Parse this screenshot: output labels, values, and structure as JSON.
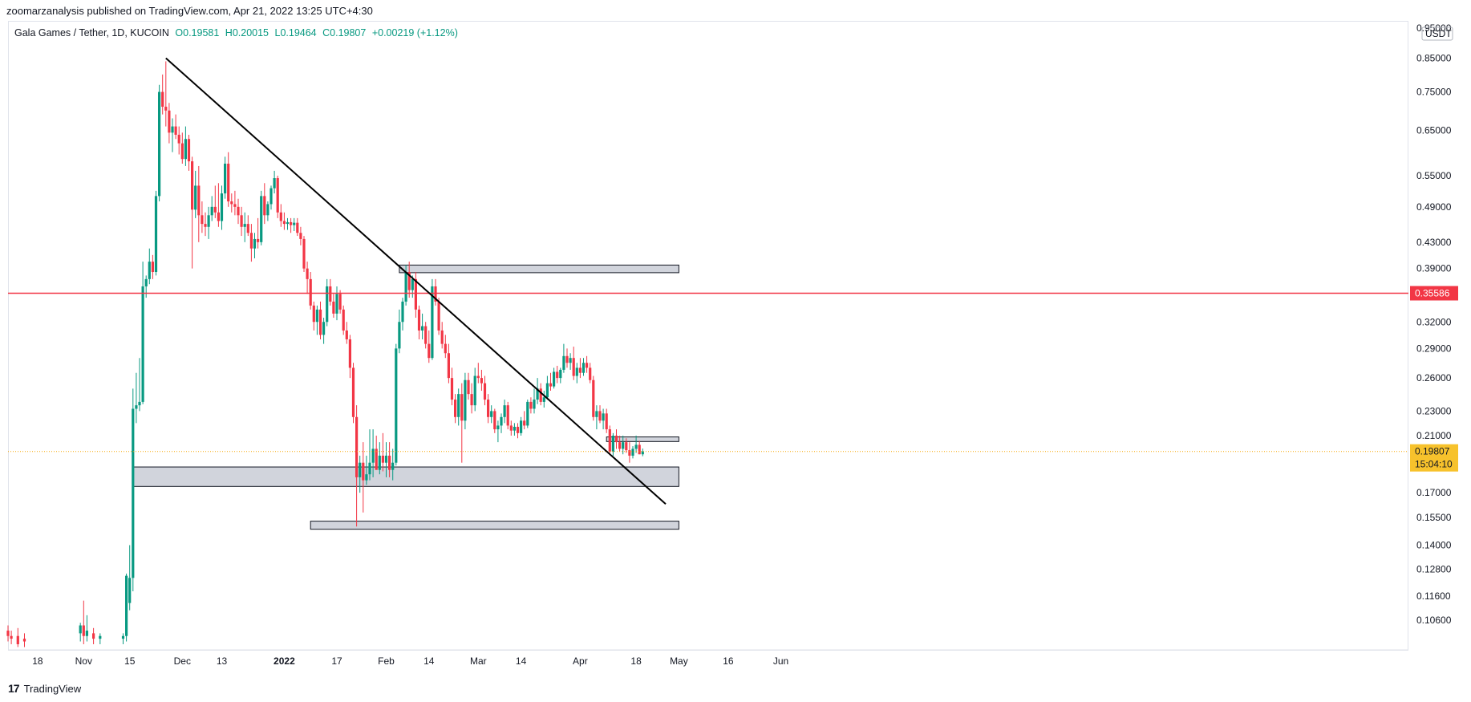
{
  "publisher_line": "zoomarzanalysis published on TradingView.com, Apr 21, 2022 13:25 UTC+4:30",
  "legend": {
    "symbol": "Gala Games / Tether, 1D, KUCOIN",
    "open": "O0.19581",
    "high": "H0.20015",
    "low": "L0.19464",
    "close": "C0.19807",
    "change": "+0.00219 (+1.12%)"
  },
  "footer": {
    "logo_glyph": "17",
    "brand": "TradingView"
  },
  "colors": {
    "up": "#089981",
    "down": "#f23645",
    "resistance_line": "#f23645",
    "zone_fill": "#d1d4dc",
    "current_price_badge": "#f7c22c",
    "trendline": "#000000"
  },
  "chart_data": {
    "type": "candlestick",
    "yscale": "log",
    "ylim": [
      0.095,
      0.97
    ],
    "currency_label": "USDT",
    "y_ticks": [
      "0.95000",
      "0.85000",
      "0.75000",
      "0.65000",
      "0.55000",
      "0.49000",
      "0.43000",
      "0.39000",
      "0.32000",
      "0.29000",
      "0.26000",
      "0.23000",
      "0.21000",
      "0.17000",
      "0.15500",
      "0.14000",
      "0.12800",
      "0.11600",
      "0.10600"
    ],
    "x_ticks": [
      "18",
      "Nov",
      "15",
      "Dec",
      "13",
      "2022",
      "17",
      "Feb",
      "14",
      "Mar",
      "14",
      "Apr",
      "18",
      "May",
      "16",
      "Jun"
    ],
    "x_tick_dates": [
      "2021-10-18",
      "2021-11-01",
      "2021-11-15",
      "2021-12-01",
      "2021-12-13",
      "2022-01-01",
      "2022-01-17",
      "2022-02-01",
      "2022-02-14",
      "2022-03-01",
      "2022-03-14",
      "2022-04-01",
      "2022-04-18",
      "2022-05-01",
      "2022-05-16",
      "2022-06-01"
    ],
    "horizontal_line": {
      "value": 0.35586,
      "label": "0.35586"
    },
    "current_price": {
      "value": 0.19807,
      "label": "0.19807",
      "countdown": "15:04:10"
    },
    "trendline": {
      "start": [
        "2021-11-26",
        0.85
      ],
      "end": [
        "2022-04-27",
        0.163
      ]
    },
    "zones": [
      {
        "start": "2022-02-05",
        "end": "2022-05-01",
        "low": 0.384,
        "high": 0.395
      },
      {
        "start": "2021-11-16",
        "end": "2022-05-01",
        "low": 0.174,
        "high": 0.187
      },
      {
        "start": "2022-01-09",
        "end": "2022-05-01",
        "low": 0.1485,
        "high": 0.153
      },
      {
        "start": "2022-04-09",
        "end": "2022-05-01",
        "low": 0.2055,
        "high": 0.209
      }
    ],
    "candles": [
      [
        "2021-10-09",
        0.102,
        0.104,
        0.098,
        0.1
      ],
      [
        "2021-10-10",
        0.1,
        0.102,
        0.097,
        0.099
      ],
      [
        "2021-10-12",
        0.1,
        0.103,
        0.096,
        0.097
      ],
      [
        "2021-10-14",
        0.099,
        0.101,
        0.096,
        0.098
      ],
      [
        "2021-10-31",
        0.101,
        0.105,
        0.098,
        0.104
      ],
      [
        "2021-11-01",
        0.104,
        0.114,
        0.097,
        0.1
      ],
      [
        "2021-11-02",
        0.1,
        0.108,
        0.098,
        0.102
      ],
      [
        "2021-11-04",
        0.101,
        0.103,
        0.097,
        0.099
      ],
      [
        "2021-11-06",
        0.099,
        0.101,
        0.097,
        0.1
      ],
      [
        "2021-11-13",
        0.099,
        0.101,
        0.097,
        0.1
      ],
      [
        "2021-11-14",
        0.1,
        0.126,
        0.098,
        0.125
      ],
      [
        "2021-11-15",
        0.113,
        0.14,
        0.11,
        0.124
      ],
      [
        "2021-11-16",
        0.124,
        0.25,
        0.118,
        0.232
      ],
      [
        "2021-11-17",
        0.232,
        0.265,
        0.22,
        0.235
      ],
      [
        "2021-11-18",
        0.235,
        0.28,
        0.23,
        0.238
      ],
      [
        "2021-11-19",
        0.238,
        0.4,
        0.236,
        0.365
      ],
      [
        "2021-11-20",
        0.365,
        0.38,
        0.35,
        0.375
      ],
      [
        "2021-11-21",
        0.375,
        0.42,
        0.368,
        0.4
      ],
      [
        "2021-11-22",
        0.4,
        0.41,
        0.375,
        0.385
      ],
      [
        "2021-11-23",
        0.385,
        0.52,
        0.38,
        0.51
      ],
      [
        "2021-11-24",
        0.51,
        0.77,
        0.5,
        0.75
      ],
      [
        "2021-11-25",
        0.75,
        0.8,
        0.69,
        0.71
      ],
      [
        "2021-11-26",
        0.71,
        0.84,
        0.66,
        0.7
      ],
      [
        "2021-11-27",
        0.7,
        0.72,
        0.62,
        0.645
      ],
      [
        "2021-11-28",
        0.645,
        0.68,
        0.6,
        0.66
      ],
      [
        "2021-11-29",
        0.66,
        0.69,
        0.63,
        0.64
      ],
      [
        "2021-11-30",
        0.64,
        0.66,
        0.595,
        0.62
      ],
      [
        "2021-12-01",
        0.62,
        0.645,
        0.575,
        0.585
      ],
      [
        "2021-12-02",
        0.585,
        0.66,
        0.57,
        0.63
      ],
      [
        "2021-12-03",
        0.63,
        0.64,
        0.56,
        0.58
      ],
      [
        "2021-12-04",
        0.58,
        0.59,
        0.39,
        0.485
      ],
      [
        "2021-12-05",
        0.485,
        0.56,
        0.47,
        0.53
      ],
      [
        "2021-12-06",
        0.53,
        0.57,
        0.43,
        0.475
      ],
      [
        "2021-12-07",
        0.475,
        0.5,
        0.445,
        0.46
      ],
      [
        "2021-12-08",
        0.46,
        0.48,
        0.44,
        0.455
      ],
      [
        "2021-12-09",
        0.455,
        0.49,
        0.435,
        0.475
      ],
      [
        "2021-12-10",
        0.475,
        0.51,
        0.465,
        0.49
      ],
      [
        "2021-12-11",
        0.49,
        0.53,
        0.47,
        0.48
      ],
      [
        "2021-12-12",
        0.48,
        0.535,
        0.455,
        0.465
      ],
      [
        "2021-12-13",
        0.465,
        0.53,
        0.45,
        0.515
      ],
      [
        "2021-12-14",
        0.515,
        0.59,
        0.505,
        0.575
      ],
      [
        "2021-12-15",
        0.575,
        0.6,
        0.49,
        0.5
      ],
      [
        "2021-12-16",
        0.5,
        0.515,
        0.48,
        0.495
      ],
      [
        "2021-12-17",
        0.495,
        0.52,
        0.475,
        0.49
      ],
      [
        "2021-12-18",
        0.49,
        0.505,
        0.46,
        0.475
      ],
      [
        "2021-12-19",
        0.475,
        0.49,
        0.44,
        0.455
      ],
      [
        "2021-12-20",
        0.455,
        0.48,
        0.43,
        0.46
      ],
      [
        "2021-12-21",
        0.46,
        0.475,
        0.44,
        0.445
      ],
      [
        "2021-12-22",
        0.445,
        0.46,
        0.4,
        0.42
      ],
      [
        "2021-12-23",
        0.42,
        0.445,
        0.405,
        0.435
      ],
      [
        "2021-12-24",
        0.435,
        0.47,
        0.42,
        0.43
      ],
      [
        "2021-12-25",
        0.43,
        0.52,
        0.425,
        0.51
      ],
      [
        "2021-12-26",
        0.51,
        0.535,
        0.46,
        0.475
      ],
      [
        "2021-12-27",
        0.475,
        0.5,
        0.465,
        0.495
      ],
      [
        "2021-12-28",
        0.495,
        0.53,
        0.485,
        0.525
      ],
      [
        "2021-12-29",
        0.525,
        0.56,
        0.515,
        0.545
      ],
      [
        "2021-12-30",
        0.545,
        0.55,
        0.47,
        0.48
      ],
      [
        "2021-12-31",
        0.48,
        0.495,
        0.455,
        0.465
      ],
      [
        "2022-01-01",
        0.465,
        0.48,
        0.45,
        0.46
      ],
      [
        "2022-01-02",
        0.46,
        0.47,
        0.45,
        0.463
      ],
      [
        "2022-01-03",
        0.463,
        0.47,
        0.445,
        0.458
      ],
      [
        "2022-01-04",
        0.458,
        0.47,
        0.448,
        0.462
      ],
      [
        "2022-01-05",
        0.462,
        0.47,
        0.44,
        0.445
      ],
      [
        "2022-01-06",
        0.445,
        0.455,
        0.425,
        0.435
      ],
      [
        "2022-01-07",
        0.435,
        0.44,
        0.385,
        0.39
      ],
      [
        "2022-01-08",
        0.39,
        0.4,
        0.355,
        0.375
      ],
      [
        "2022-01-09",
        0.375,
        0.385,
        0.335,
        0.34
      ],
      [
        "2022-01-10",
        0.34,
        0.345,
        0.31,
        0.32
      ],
      [
        "2022-01-11",
        0.32,
        0.34,
        0.305,
        0.335
      ],
      [
        "2022-01-12",
        0.335,
        0.345,
        0.3,
        0.305
      ],
      [
        "2022-01-13",
        0.305,
        0.325,
        0.295,
        0.32
      ],
      [
        "2022-01-14",
        0.32,
        0.375,
        0.315,
        0.365
      ],
      [
        "2022-01-15",
        0.365,
        0.375,
        0.34,
        0.345
      ],
      [
        "2022-01-16",
        0.345,
        0.355,
        0.325,
        0.33
      ],
      [
        "2022-01-17",
        0.33,
        0.365,
        0.322,
        0.355
      ],
      [
        "2022-01-18",
        0.355,
        0.36,
        0.33,
        0.335
      ],
      [
        "2022-01-19",
        0.335,
        0.34,
        0.305,
        0.31
      ],
      [
        "2022-01-20",
        0.31,
        0.32,
        0.295,
        0.3
      ],
      [
        "2022-01-21",
        0.3,
        0.305,
        0.26,
        0.27
      ],
      [
        "2022-01-22",
        0.27,
        0.275,
        0.22,
        0.225
      ],
      [
        "2022-01-23",
        0.225,
        0.235,
        0.15,
        0.18
      ],
      [
        "2022-01-24",
        0.18,
        0.195,
        0.17,
        0.19
      ],
      [
        "2022-01-25",
        0.19,
        0.205,
        0.158,
        0.178
      ],
      [
        "2022-01-26",
        0.178,
        0.195,
        0.175,
        0.182
      ],
      [
        "2022-01-27",
        0.182,
        0.215,
        0.178,
        0.19
      ],
      [
        "2022-01-28",
        0.19,
        0.215,
        0.18,
        0.2
      ],
      [
        "2022-01-29",
        0.2,
        0.21,
        0.185,
        0.185
      ],
      [
        "2022-01-30",
        0.185,
        0.205,
        0.182,
        0.195
      ],
      [
        "2022-01-31",
        0.195,
        0.212,
        0.184,
        0.19
      ],
      [
        "2022-02-01",
        0.19,
        0.205,
        0.18,
        0.195
      ],
      [
        "2022-02-02",
        0.195,
        0.205,
        0.18,
        0.185
      ],
      [
        "2022-02-03",
        0.185,
        0.2,
        0.178,
        0.19
      ],
      [
        "2022-02-04",
        0.19,
        0.295,
        0.188,
        0.29
      ],
      [
        "2022-02-05",
        0.29,
        0.335,
        0.285,
        0.32
      ],
      [
        "2022-02-06",
        0.32,
        0.35,
        0.31,
        0.345
      ],
      [
        "2022-02-07",
        0.345,
        0.395,
        0.34,
        0.385
      ],
      [
        "2022-02-08",
        0.385,
        0.4,
        0.35,
        0.36
      ],
      [
        "2022-02-09",
        0.36,
        0.38,
        0.35,
        0.375
      ],
      [
        "2022-02-10",
        0.375,
        0.385,
        0.325,
        0.335
      ],
      [
        "2022-02-11",
        0.335,
        0.34,
        0.3,
        0.31
      ],
      [
        "2022-02-12",
        0.31,
        0.33,
        0.3,
        0.315
      ],
      [
        "2022-02-13",
        0.315,
        0.32,
        0.29,
        0.295
      ],
      [
        "2022-02-14",
        0.295,
        0.31,
        0.275,
        0.28
      ],
      [
        "2022-02-15",
        0.28,
        0.375,
        0.278,
        0.365
      ],
      [
        "2022-02-16",
        0.365,
        0.375,
        0.34,
        0.345
      ],
      [
        "2022-02-17",
        0.345,
        0.35,
        0.305,
        0.31
      ],
      [
        "2022-02-18",
        0.31,
        0.32,
        0.29,
        0.295
      ],
      [
        "2022-02-19",
        0.295,
        0.305,
        0.28,
        0.285
      ],
      [
        "2022-02-20",
        0.285,
        0.295,
        0.255,
        0.26
      ],
      [
        "2022-02-21",
        0.26,
        0.27,
        0.235,
        0.24
      ],
      [
        "2022-02-22",
        0.24,
        0.245,
        0.22,
        0.225
      ],
      [
        "2022-02-23",
        0.225,
        0.25,
        0.218,
        0.245
      ],
      [
        "2022-02-24",
        0.245,
        0.255,
        0.19,
        0.222
      ],
      [
        "2022-02-25",
        0.222,
        0.265,
        0.215,
        0.258
      ],
      [
        "2022-02-26",
        0.258,
        0.265,
        0.24,
        0.245
      ],
      [
        "2022-02-27",
        0.245,
        0.255,
        0.228,
        0.235
      ],
      [
        "2022-02-28",
        0.235,
        0.27,
        0.23,
        0.262
      ],
      [
        "2022-03-01",
        0.262,
        0.275,
        0.255,
        0.26
      ],
      [
        "2022-03-02",
        0.26,
        0.268,
        0.248,
        0.255
      ],
      [
        "2022-03-03",
        0.255,
        0.262,
        0.235,
        0.24
      ],
      [
        "2022-03-04",
        0.24,
        0.245,
        0.22,
        0.225
      ],
      [
        "2022-03-05",
        0.225,
        0.235,
        0.22,
        0.23
      ],
      [
        "2022-03-06",
        0.23,
        0.232,
        0.212,
        0.215
      ],
      [
        "2022-03-07",
        0.215,
        0.222,
        0.205,
        0.218
      ],
      [
        "2022-03-08",
        0.218,
        0.228,
        0.212,
        0.225
      ],
      [
        "2022-03-09",
        0.225,
        0.24,
        0.22,
        0.235
      ],
      [
        "2022-03-10",
        0.235,
        0.238,
        0.215,
        0.218
      ],
      [
        "2022-03-11",
        0.218,
        0.222,
        0.21,
        0.214
      ],
      [
        "2022-03-12",
        0.214,
        0.22,
        0.21,
        0.217
      ],
      [
        "2022-03-13",
        0.217,
        0.22,
        0.208,
        0.212
      ],
      [
        "2022-03-14",
        0.212,
        0.225,
        0.21,
        0.222
      ],
      [
        "2022-03-15",
        0.222,
        0.23,
        0.215,
        0.218
      ],
      [
        "2022-03-16",
        0.218,
        0.24,
        0.216,
        0.238
      ],
      [
        "2022-03-17",
        0.238,
        0.242,
        0.228,
        0.232
      ],
      [
        "2022-03-18",
        0.232,
        0.25,
        0.228,
        0.24
      ],
      [
        "2022-03-19",
        0.24,
        0.26,
        0.236,
        0.25
      ],
      [
        "2022-03-20",
        0.25,
        0.255,
        0.235,
        0.238
      ],
      [
        "2022-03-21",
        0.238,
        0.248,
        0.233,
        0.242
      ],
      [
        "2022-03-22",
        0.242,
        0.262,
        0.24,
        0.255
      ],
      [
        "2022-03-23",
        0.255,
        0.265,
        0.248,
        0.252
      ],
      [
        "2022-03-24",
        0.252,
        0.27,
        0.25,
        0.266
      ],
      [
        "2022-03-25",
        0.266,
        0.272,
        0.255,
        0.26
      ],
      [
        "2022-03-26",
        0.26,
        0.27,
        0.255,
        0.268
      ],
      [
        "2022-03-27",
        0.268,
        0.295,
        0.265,
        0.282
      ],
      [
        "2022-03-28",
        0.282,
        0.29,
        0.27,
        0.275
      ],
      [
        "2022-03-29",
        0.275,
        0.285,
        0.268,
        0.28
      ],
      [
        "2022-03-30",
        0.28,
        0.292,
        0.258,
        0.262
      ],
      [
        "2022-03-31",
        0.262,
        0.275,
        0.255,
        0.27
      ],
      [
        "2022-04-01",
        0.27,
        0.28,
        0.26,
        0.265
      ],
      [
        "2022-04-02",
        0.265,
        0.28,
        0.262,
        0.275
      ],
      [
        "2022-04-03",
        0.275,
        0.282,
        0.265,
        0.27
      ],
      [
        "2022-04-04",
        0.27,
        0.275,
        0.255,
        0.258
      ],
      [
        "2022-04-05",
        0.258,
        0.262,
        0.222,
        0.225
      ],
      [
        "2022-04-06",
        0.225,
        0.235,
        0.215,
        0.23
      ],
      [
        "2022-04-07",
        0.23,
        0.235,
        0.22,
        0.222
      ],
      [
        "2022-04-08",
        0.222,
        0.232,
        0.215,
        0.228
      ],
      [
        "2022-04-09",
        0.228,
        0.232,
        0.212,
        0.215
      ],
      [
        "2022-04-10",
        0.215,
        0.218,
        0.196,
        0.198
      ],
      [
        "2022-04-11",
        0.198,
        0.212,
        0.195,
        0.21
      ],
      [
        "2022-04-12",
        0.21,
        0.215,
        0.2,
        0.205
      ],
      [
        "2022-04-13",
        0.205,
        0.21,
        0.198,
        0.2
      ],
      [
        "2022-04-14",
        0.2,
        0.21,
        0.196,
        0.205
      ],
      [
        "2022-04-15",
        0.205,
        0.208,
        0.197,
        0.199
      ],
      [
        "2022-04-16",
        0.199,
        0.205,
        0.19,
        0.195
      ],
      [
        "2022-04-17",
        0.195,
        0.202,
        0.193,
        0.2
      ],
      [
        "2022-04-18",
        0.2,
        0.21,
        0.197,
        0.203
      ],
      [
        "2022-04-19",
        0.203,
        0.206,
        0.196,
        0.196
      ],
      [
        "2022-04-20",
        0.196,
        0.2002,
        0.1946,
        0.1981
      ]
    ]
  }
}
